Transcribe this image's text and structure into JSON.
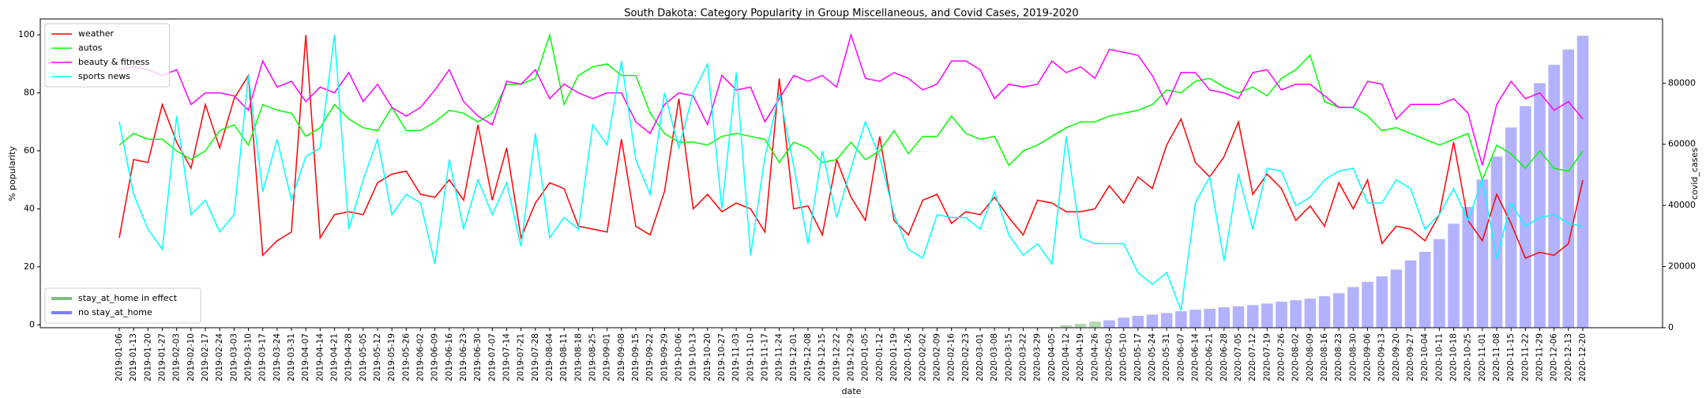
{
  "chart_data": {
    "type": "line",
    "title": "South Dakota: Category Popularity in Group Miscellaneous, and Covid Cases, 2019-2020",
    "xlabel": "date",
    "ylabel": "% popularity",
    "y2label": "covid_cases",
    "categories": [
      "2019-01-06",
      "2019-01-13",
      "2019-01-20",
      "2019-01-27",
      "2019-02-03",
      "2019-02-10",
      "2019-02-17",
      "2019-02-24",
      "2019-03-03",
      "2019-03-10",
      "2019-03-17",
      "2019-03-24",
      "2019-03-31",
      "2019-04-07",
      "2019-04-14",
      "2019-04-21",
      "2019-04-28",
      "2019-05-05",
      "2019-05-12",
      "2019-05-19",
      "2019-05-26",
      "2019-06-02",
      "2019-06-09",
      "2019-06-16",
      "2019-06-23",
      "2019-06-30",
      "2019-07-07",
      "2019-07-14",
      "2019-07-21",
      "2019-07-28",
      "2019-08-04",
      "2019-08-11",
      "2019-08-18",
      "2019-08-25",
      "2019-09-01",
      "2019-09-08",
      "2019-09-15",
      "2019-09-22",
      "2019-09-29",
      "2019-10-06",
      "2019-10-13",
      "2019-10-20",
      "2019-10-27",
      "2019-11-03",
      "2019-11-10",
      "2019-11-17",
      "2019-11-24",
      "2019-12-01",
      "2019-12-08",
      "2019-12-15",
      "2019-12-22",
      "2019-12-29",
      "2020-01-05",
      "2020-01-12",
      "2020-01-19",
      "2020-01-26",
      "2020-02-02",
      "2020-02-09",
      "2020-02-16",
      "2020-02-23",
      "2020-03-01",
      "2020-03-08",
      "2020-03-15",
      "2020-03-22",
      "2020-03-29",
      "2020-04-05",
      "2020-04-12",
      "2020-04-19",
      "2020-04-26",
      "2020-05-03",
      "2020-05-10",
      "2020-05-17",
      "2020-05-24",
      "2020-05-31",
      "2020-06-07",
      "2020-06-14",
      "2020-06-21",
      "2020-06-28",
      "2020-07-05",
      "2020-07-12",
      "2020-07-19",
      "2020-07-26",
      "2020-08-02",
      "2020-08-09",
      "2020-08-16",
      "2020-08-23",
      "2020-08-30",
      "2020-09-06",
      "2020-09-13",
      "2020-09-20",
      "2020-09-27",
      "2020-10-04",
      "2020-10-11",
      "2020-10-18",
      "2020-10-25",
      "2020-11-01",
      "2020-11-08",
      "2020-11-15",
      "2020-11-22",
      "2020-11-29",
      "2020-12-06",
      "2020-12-13",
      "2020-12-20"
    ],
    "ylim": [
      -1,
      105.5
    ],
    "yticks": [
      0,
      20,
      40,
      60,
      80,
      100
    ],
    "y2lim": [
      0,
      101000
    ],
    "y2ticks": [
      0,
      20000,
      40000,
      60000,
      80000
    ],
    "legend": [
      "upper left",
      "lower left"
    ],
    "series": [
      {
        "name": "weather",
        "color": "#ff0000",
        "values": [
          30,
          57,
          56,
          76,
          63,
          54,
          76,
          61,
          78,
          86,
          24,
          29,
          32,
          100,
          30,
          38,
          39,
          38,
          49,
          52,
          53,
          45,
          44,
          50,
          43,
          69,
          43,
          61,
          30,
          42,
          49,
          47,
          34,
          33,
          32,
          64,
          34,
          31,
          46,
          78,
          40,
          45,
          39,
          42,
          40,
          32,
          85,
          40,
          41,
          31,
          57,
          44,
          36,
          65,
          36,
          31,
          43,
          45,
          35,
          39,
          38,
          44,
          37,
          31,
          43,
          42,
          39,
          39,
          40,
          48,
          42,
          51,
          47,
          62,
          71,
          56,
          51,
          58,
          70,
          45,
          52,
          47,
          36,
          41,
          34,
          49,
          40,
          50,
          28,
          34,
          33,
          29,
          38,
          63,
          36,
          29,
          45,
          35,
          23,
          25,
          24,
          28,
          50
        ]
      },
      {
        "name": "autos",
        "color": "#00ff00",
        "values": [
          62,
          66,
          64,
          64,
          60,
          57,
          60,
          67,
          69,
          62,
          76,
          74,
          73,
          65,
          68,
          76,
          71,
          68,
          67,
          75,
          67,
          67,
          70,
          74,
          73,
          70,
          73,
          83,
          83,
          85,
          100,
          76,
          86,
          89,
          90,
          86,
          86,
          73,
          66,
          63,
          63,
          62,
          65,
          66,
          65,
          64,
          56,
          63,
          61,
          56,
          57,
          63,
          57,
          60,
          67,
          59,
          65,
          65,
          72,
          66,
          64,
          65,
          55,
          60,
          62,
          65,
          68,
          70,
          70,
          72,
          73,
          74,
          76,
          81,
          80,
          84,
          85,
          82,
          80,
          82,
          79,
          85,
          88,
          93,
          77,
          75,
          75,
          72,
          67,
          68,
          66,
          64,
          62,
          64,
          66,
          50,
          62,
          59,
          54,
          60,
          54,
          53,
          60
        ]
      },
      {
        "name": "beauty & fitness",
        "color": "#ff00ff",
        "values": [
          88,
          89,
          88,
          86,
          88,
          76,
          80,
          80,
          79,
          74,
          91,
          82,
          84,
          77,
          82,
          80,
          87,
          77,
          83,
          75,
          72,
          75,
          81,
          88,
          77,
          72,
          69,
          84,
          83,
          88,
          78,
          83,
          80,
          78,
          80,
          80,
          70,
          66,
          76,
          80,
          79,
          69,
          86,
          81,
          82,
          70,
          78,
          86,
          84,
          86,
          82,
          100,
          85,
          84,
          87,
          85,
          81,
          83,
          91,
          91,
          88,
          78,
          83,
          82,
          83,
          91,
          87,
          89,
          85,
          95,
          94,
          93,
          86,
          76,
          87,
          87,
          81,
          80,
          78,
          87,
          88,
          81,
          83,
          83,
          79,
          75,
          75,
          84,
          83,
          71,
          76,
          76,
          76,
          78,
          73,
          55,
          76,
          84,
          78,
          80,
          74,
          77,
          71
        ]
      },
      {
        "name": "sports news",
        "color": "#00ffff",
        "values": [
          70,
          45,
          33,
          26,
          72,
          38,
          43,
          32,
          38,
          86,
          46,
          64,
          43,
          58,
          61,
          100,
          33,
          50,
          64,
          38,
          45,
          42,
          21,
          57,
          33,
          50,
          38,
          49,
          27,
          66,
          30,
          37,
          33,
          69,
          62,
          91,
          57,
          45,
          80,
          61,
          80,
          90,
          40,
          87,
          24,
          58,
          80,
          55,
          28,
          60,
          37,
          54,
          70,
          58,
          38,
          26,
          23,
          38,
          37,
          37,
          33,
          46,
          31,
          24,
          28,
          21,
          65,
          30,
          28,
          28,
          28,
          18,
          14,
          18,
          5,
          42,
          51,
          22,
          52,
          33,
          54,
          53,
          41,
          44,
          50,
          53,
          54,
          42,
          42,
          50,
          47,
          33,
          38,
          47,
          36,
          50,
          23,
          42,
          34,
          37,
          38,
          35,
          34
        ]
      },
      {
        "name": "stay_at_home in effect",
        "type": "bar",
        "axis": "y2",
        "color": "#008000",
        "values": [
          null,
          null,
          null,
          null,
          null,
          null,
          null,
          null,
          null,
          null,
          null,
          null,
          null,
          null,
          null,
          null,
          null,
          null,
          null,
          null,
          null,
          null,
          null,
          null,
          null,
          null,
          null,
          null,
          null,
          null,
          null,
          null,
          null,
          null,
          null,
          null,
          null,
          null,
          null,
          null,
          null,
          null,
          null,
          null,
          null,
          null,
          null,
          null,
          null,
          null,
          null,
          null,
          null,
          null,
          null,
          null,
          null,
          null,
          null,
          null,
          null,
          null,
          null,
          null,
          null,
          null,
          800,
          1300,
          2000,
          null,
          null,
          null,
          null,
          null,
          null,
          null,
          null,
          null,
          null,
          null,
          null,
          null,
          null,
          null,
          null,
          null,
          null,
          null,
          null,
          null,
          null,
          null,
          null,
          null,
          null,
          null,
          null,
          null,
          null,
          null,
          null,
          null,
          null
        ]
      },
      {
        "name": "no stay_at_home",
        "type": "bar",
        "axis": "y2",
        "color": "#0000ff",
        "values": [
          null,
          null,
          null,
          null,
          null,
          null,
          null,
          null,
          null,
          null,
          null,
          null,
          null,
          null,
          null,
          null,
          null,
          null,
          null,
          null,
          null,
          null,
          null,
          null,
          null,
          null,
          null,
          null,
          null,
          null,
          null,
          null,
          null,
          null,
          null,
          null,
          null,
          null,
          null,
          null,
          null,
          null,
          null,
          null,
          null,
          null,
          null,
          null,
          null,
          null,
          null,
          null,
          null,
          null,
          null,
          null,
          null,
          null,
          null,
          null,
          null,
          null,
          null,
          null,
          null,
          null,
          null,
          null,
          null,
          2400,
          3300,
          3900,
          4300,
          4800,
          5400,
          5900,
          6200,
          6700,
          7000,
          7400,
          7900,
          8500,
          9000,
          9500,
          10300,
          11300,
          13300,
          15000,
          16800,
          19000,
          22000,
          24800,
          29000,
          34000,
          39500,
          48500,
          56000,
          65500,
          72500,
          80000,
          86000,
          91000,
          95500
        ]
      }
    ]
  }
}
